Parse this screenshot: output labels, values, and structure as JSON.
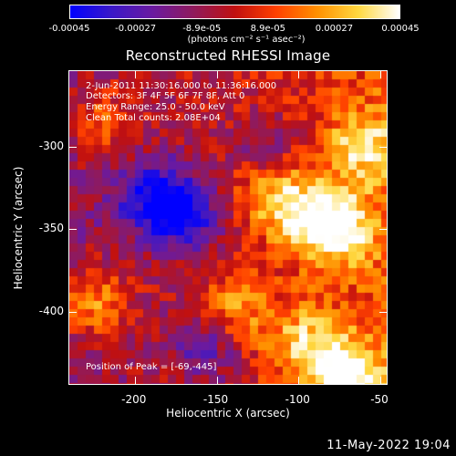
{
  "colorbar": {
    "tick_labels": [
      "-0.00045",
      "-0.00027",
      "-8.9e-05",
      "8.9e-05",
      "0.00027",
      "0.00045"
    ],
    "units": "(photons cm⁻² s⁻¹ asec⁻²)",
    "colors": [
      "#0000ff",
      "#3a18c8",
      "#6a1aa0",
      "#901a5c",
      "#c01010",
      "#ff4000",
      "#ff9000",
      "#ffd840",
      "#ffffff"
    ]
  },
  "title": "Reconstructed RHESSI Image",
  "info": {
    "time_range": "2-Jun-2011 11:30:16.000 to 11:36:16.000",
    "detectors": "Detectors: 3F 4F 5F 6F 7F 8F, Att 0",
    "energy": "Energy Range: 25.0 - 50.0 keV",
    "algorithm": "Clean     Total counts: 2.08E+04"
  },
  "peak": "Position of Peak = [-69,-445]",
  "x_axis": {
    "title": "Heliocentric X (arcsec)",
    "ticks": [
      "-200",
      "-150",
      "-100",
      "-50"
    ]
  },
  "y_axis": {
    "title": "Heliocentric Y (arcsec)",
    "ticks": [
      "-300",
      "-350",
      "-400"
    ]
  },
  "timestamp": "11-May-2022 19:04",
  "chart_data": {
    "type": "heatmap",
    "title": "Reconstructed RHESSI Image",
    "xlabel": "Heliocentric X (arcsec)",
    "ylabel": "Heliocentric Y (arcsec)",
    "xlim": [
      -240,
      -45
    ],
    "ylim": [
      -445,
      -254
    ],
    "color_range": [
      -0.00045,
      0.00045
    ],
    "peak": [
      -69,
      -445
    ],
    "hot_spots": [
      {
        "x": -75,
        "y": -350,
        "value": 0.0004
      },
      {
        "x": -69,
        "y": -440,
        "value": 0.00045
      },
      {
        "x": -100,
        "y": -340,
        "value": 0.00032
      },
      {
        "x": -120,
        "y": -320,
        "value": 0.00028
      },
      {
        "x": -60,
        "y": -300,
        "value": 0.0003
      },
      {
        "x": -140,
        "y": -400,
        "value": 0.00025
      },
      {
        "x": -225,
        "y": -395,
        "value": 0.0003
      },
      {
        "x": -220,
        "y": -285,
        "value": 0.00022
      },
      {
        "x": -95,
        "y": -420,
        "value": 0.0003
      }
    ],
    "cold_spots": [
      {
        "x": -170,
        "y": -340,
        "value": -0.0004
      },
      {
        "x": -190,
        "y": -330,
        "value": -0.00032
      },
      {
        "x": -120,
        "y": -305,
        "value": -0.0003
      },
      {
        "x": -155,
        "y": -420,
        "value": -0.00025
      }
    ]
  }
}
